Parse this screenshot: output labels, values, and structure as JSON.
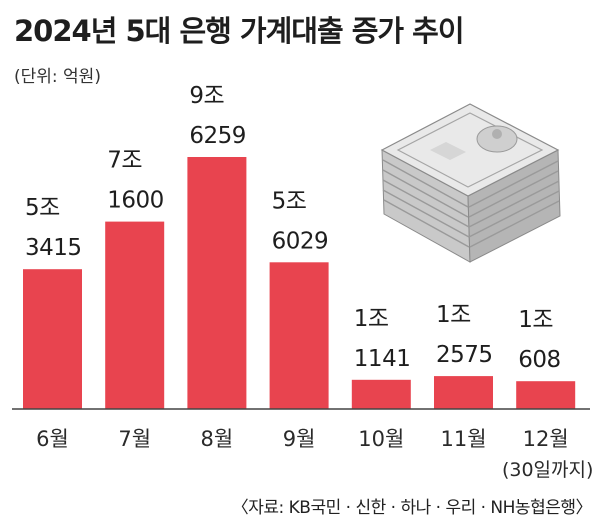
{
  "header": {
    "title": "2024년 5대 은행 가계대출 증가 추이",
    "unit": "(단위: 억원)"
  },
  "footer": {
    "source": "〈자료: KB국민 · 신한 · 하나 · 우리 · NH농협은행〉"
  },
  "colors": {
    "bar": "#e8444f",
    "baseline": "#444444"
  },
  "illustration": {
    "icon": "money-stack-icon"
  },
  "chart_data": {
    "type": "bar",
    "title": "2024년 5대 은행 가계대출 증가 추이",
    "unit": "억원",
    "categories": [
      "6월",
      "7월",
      "8월",
      "9월",
      "10월",
      "11월",
      "12월"
    ],
    "category_notes": [
      "",
      "",
      "",
      "",
      "",
      "",
      "(30일까지)"
    ],
    "values": [
      53415,
      71600,
      96259,
      56029,
      11141,
      12575,
      10608
    ],
    "value_labels": [
      [
        "5조",
        "3415"
      ],
      [
        "7조",
        "1600"
      ],
      [
        "9조",
        "6259"
      ],
      [
        "5조",
        "6029"
      ],
      [
        "1조",
        "1141"
      ],
      [
        "1조",
        "2575"
      ],
      [
        "1조",
        "608"
      ]
    ],
    "grid": false,
    "legend": "none"
  }
}
